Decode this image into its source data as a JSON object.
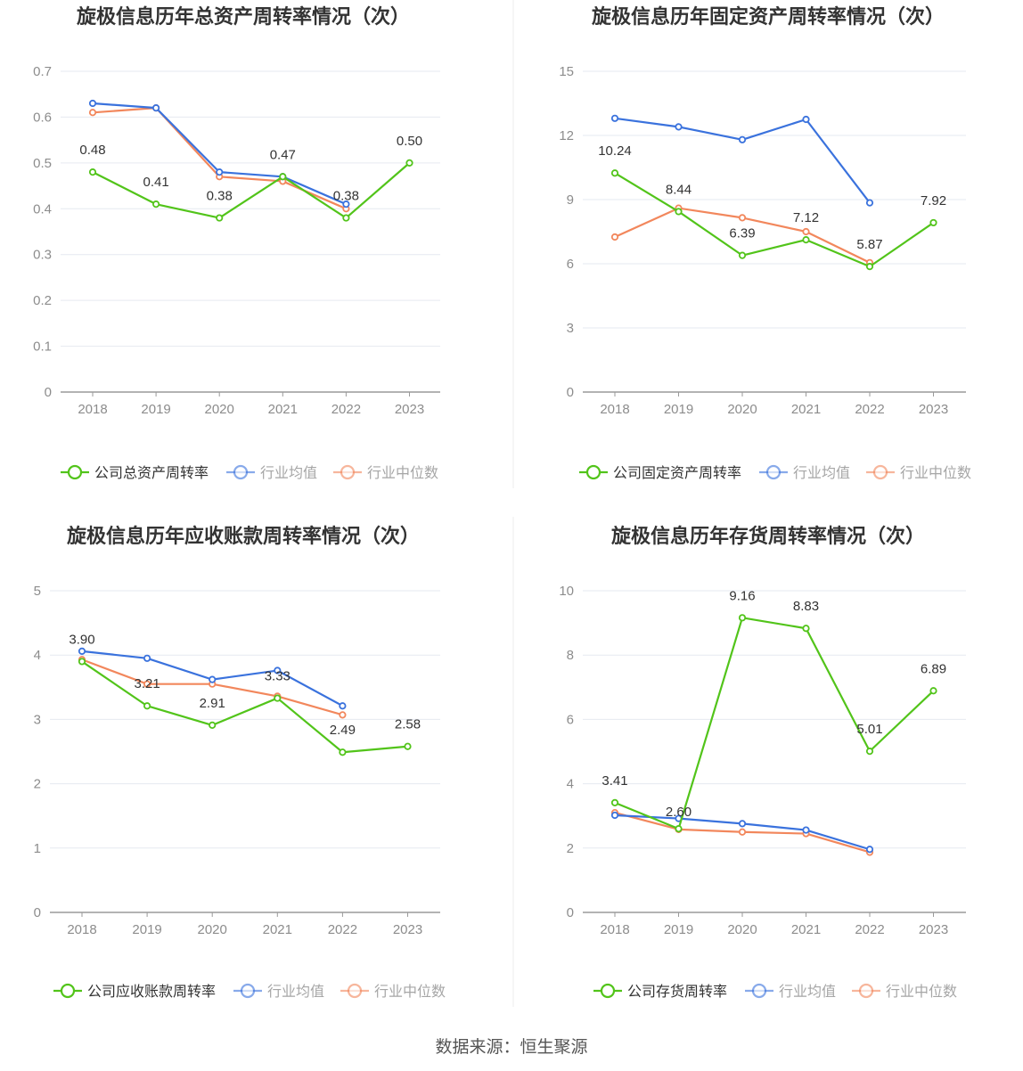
{
  "colors": {
    "company": "#52c41a",
    "industry_avg": "#3a72dd",
    "industry_median": "#f2875c",
    "grid": "#e6e9f0",
    "axis": "#9a9a9a",
    "divider": "#eeeeee"
  },
  "legend_common": [
    "行业均值",
    "行业中位数"
  ],
  "source": "数据来源：恒生聚源",
  "chart_data": [
    {
      "type": "line",
      "title": "旋极信息历年总资产周转率情况（次）",
      "categories": [
        "2018",
        "2019",
        "2020",
        "2021",
        "2022",
        "2023"
      ],
      "y_ticks": [
        "0",
        "0.1",
        "0.2",
        "0.3",
        "0.4",
        "0.5",
        "0.6",
        "0.7"
      ],
      "ylim": [
        0,
        0.7
      ],
      "grid": true,
      "legend_position": "bottom",
      "series": [
        {
          "name": "公司总资产周转率",
          "role": "company",
          "values": [
            0.48,
            0.41,
            0.38,
            0.47,
            0.38,
            0.5
          ],
          "labels": [
            "0.48",
            "0.41",
            "0.38",
            "0.47",
            "0.38",
            "0.50"
          ]
        },
        {
          "name": "行业均值",
          "role": "industry_avg",
          "values": [
            0.63,
            0.62,
            0.48,
            0.47,
            0.41,
            null
          ]
        },
        {
          "name": "行业中位数",
          "role": "industry_median",
          "values": [
            0.61,
            0.62,
            0.47,
            0.46,
            0.4,
            null
          ]
        }
      ]
    },
    {
      "type": "line",
      "title": "旋极信息历年固定资产周转率情况（次）",
      "categories": [
        "2018",
        "2019",
        "2020",
        "2021",
        "2022",
        "2023"
      ],
      "y_ticks": [
        "0",
        "3",
        "6",
        "9",
        "12",
        "15"
      ],
      "ylim": [
        0,
        15
      ],
      "grid": true,
      "legend_position": "bottom",
      "series": [
        {
          "name": "公司固定资产周转率",
          "role": "company",
          "values": [
            10.24,
            8.44,
            6.39,
            7.12,
            5.87,
            7.92
          ],
          "labels": [
            "10.24",
            "8.44",
            "6.39",
            "7.12",
            "5.87",
            "7.92"
          ]
        },
        {
          "name": "行业均值",
          "role": "industry_avg",
          "values": [
            12.8,
            12.4,
            11.8,
            12.75,
            8.85,
            null
          ]
        },
        {
          "name": "行业中位数",
          "role": "industry_median",
          "values": [
            7.25,
            8.6,
            8.15,
            7.5,
            6.05,
            null
          ]
        }
      ]
    },
    {
      "type": "line",
      "title": "旋极信息历年应收账款周转率情况（次）",
      "categories": [
        "2018",
        "2019",
        "2020",
        "2021",
        "2022",
        "2023"
      ],
      "y_ticks": [
        "0",
        "1",
        "2",
        "3",
        "4",
        "5"
      ],
      "ylim": [
        0,
        5
      ],
      "grid": true,
      "legend_position": "bottom",
      "series": [
        {
          "name": "公司应收账款周转率",
          "role": "company",
          "values": [
            3.9,
            3.21,
            2.91,
            3.33,
            2.49,
            2.58
          ],
          "labels": [
            "3.90",
            "3.21",
            "2.91",
            "3.33",
            "2.49",
            "2.58"
          ]
        },
        {
          "name": "行业均值",
          "role": "industry_avg",
          "values": [
            4.06,
            3.95,
            3.62,
            3.76,
            3.21,
            null
          ]
        },
        {
          "name": "行业中位数",
          "role": "industry_median",
          "values": [
            3.93,
            3.55,
            3.55,
            3.36,
            3.07,
            null
          ]
        }
      ]
    },
    {
      "type": "line",
      "title": "旋极信息历年存货周转率情况（次）",
      "categories": [
        "2018",
        "2019",
        "2020",
        "2021",
        "2022",
        "2023"
      ],
      "y_ticks": [
        "0",
        "2",
        "4",
        "6",
        "8",
        "10"
      ],
      "ylim": [
        0,
        10
      ],
      "grid": true,
      "legend_position": "bottom",
      "series": [
        {
          "name": "公司存货周转率",
          "role": "company",
          "values": [
            3.41,
            2.6,
            9.16,
            8.83,
            5.01,
            6.89
          ],
          "labels": [
            "3.41",
            "2.60",
            "9.16",
            "8.83",
            "5.01",
            "6.89"
          ]
        },
        {
          "name": "行业均值",
          "role": "industry_avg",
          "values": [
            3.02,
            2.92,
            2.76,
            2.56,
            1.96,
            null
          ]
        },
        {
          "name": "行业中位数",
          "role": "industry_median",
          "values": [
            3.1,
            2.58,
            2.5,
            2.45,
            1.87,
            null
          ]
        }
      ]
    }
  ]
}
